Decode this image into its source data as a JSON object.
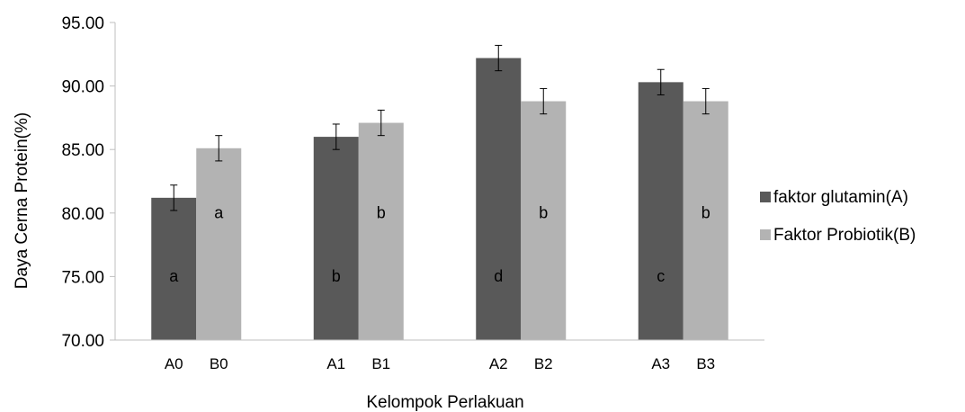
{
  "chart_data": {
    "type": "bar",
    "title": "",
    "xlabel": "Kelompok Perlakuan",
    "ylabel": "Daya Cerna Protein(%)",
    "ylim": [
      70,
      95
    ],
    "yticks": [
      "70.00",
      "75.00",
      "80.00",
      "85.00",
      "90.00",
      "95.00"
    ],
    "legend_position": "right",
    "grid": false,
    "series": [
      {
        "name": "faktor glutamin(A)",
        "color": "#595959",
        "values": [
          81.2,
          86.0,
          92.2,
          90.3
        ],
        "errors": [
          1.0,
          1.0,
          1.0,
          1.0
        ],
        "tick_labels": [
          "A0",
          "A1",
          "A2",
          "A3"
        ],
        "sig_labels": [
          "a",
          "b",
          "d",
          "c"
        ]
      },
      {
        "name": "Faktor Probiotik(B)",
        "color": "#b3b3b3",
        "values": [
          85.1,
          87.1,
          88.8,
          88.8
        ],
        "errors": [
          1.0,
          1.0,
          1.0,
          1.0
        ],
        "tick_labels": [
          "B0",
          "B1",
          "B2",
          "B3"
        ],
        "sig_labels": [
          "a",
          "b",
          "b",
          "b"
        ]
      }
    ]
  }
}
